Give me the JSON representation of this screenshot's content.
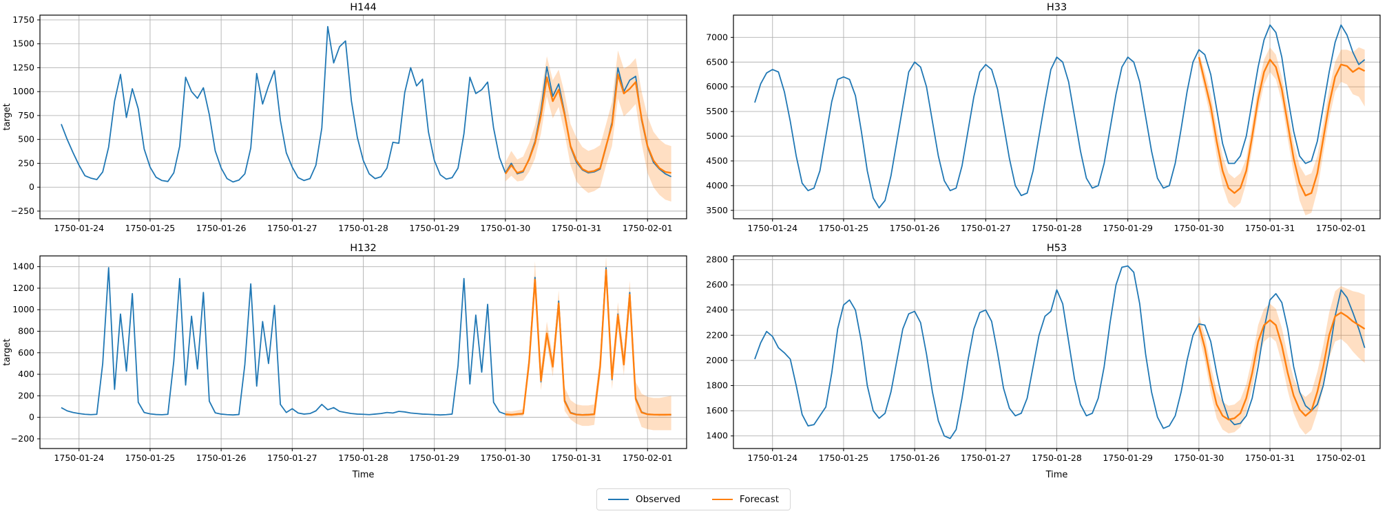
{
  "figure": {
    "background": "#ffffff"
  },
  "chart_data": {
    "type": "line",
    "description": "2x2 grid of hourly time-series forecast plots; blue observed line, orange forecast mean with shaded prediction interval over the final 2+ days",
    "x_tick_labels": [
      "1750-01-24",
      "1750-01-25",
      "1750-01-26",
      "1750-01-27",
      "1750-01-28",
      "1750-01-29",
      "1750-01-30",
      "1750-01-31",
      "1750-02-01"
    ],
    "x_tick_days": [
      0,
      1,
      2,
      3,
      4,
      5,
      6,
      7,
      8
    ],
    "xlim_days": [
      -0.55,
      8.55
    ],
    "sample_step_hours": 2,
    "observed_start_hour": -6,
    "forecast_start_hour": 144,
    "grid_on": true,
    "colors": {
      "observed": "#1f77b4",
      "forecast": "#ff7f0e",
      "band": "#ff7f0e",
      "band_opacity": 0.25,
      "grid": "#b0b0b0",
      "spine": "#000000",
      "text": "#000000"
    },
    "legend": {
      "observed_label": "Observed",
      "forecast_label": "Forecast",
      "position": "lower center"
    },
    "panels": [
      {
        "title": "H144",
        "ylabel": "target",
        "xlabel": null,
        "yticks": [
          -250,
          0,
          250,
          500,
          750,
          1000,
          1250,
          1500,
          1750
        ],
        "ylim": [
          -330,
          1800
        ],
        "observed": [
          660,
          500,
          360,
          230,
          120,
          95,
          80,
          160,
          420,
          900,
          1180,
          730,
          1030,
          820,
          400,
          210,
          105,
          70,
          60,
          150,
          430,
          1150,
          1000,
          930,
          1040,
          760,
          380,
          200,
          90,
          55,
          75,
          140,
          410,
          1190,
          870,
          1060,
          1220,
          700,
          360,
          210,
          100,
          70,
          90,
          230,
          620,
          1680,
          1300,
          1470,
          1530,
          900,
          520,
          280,
          140,
          90,
          110,
          200,
          470,
          460,
          990,
          1250,
          1060,
          1130,
          580,
          280,
          130,
          85,
          100,
          200,
          560,
          1150,
          980,
          1020,
          1100,
          620,
          310,
          150,
          250,
          140,
          160,
          300,
          480,
          800,
          1260,
          950,
          1080,
          780,
          420,
          260,
          180,
          150,
          160,
          190,
          420,
          680,
          1250,
          1000,
          1120,
          1160,
          700,
          420,
          260,
          190,
          140,
          110
        ],
        "forecast_mean": [
          140,
          230,
          150,
          170,
          290,
          460,
          750,
          1150,
          900,
          1020,
          760,
          430,
          280,
          190,
          160,
          170,
          200,
          430,
          650,
          1180,
          980,
          1030,
          1100,
          720,
          430,
          280,
          200,
          160,
          150
        ],
        "forecast_lower": [
          60,
          120,
          60,
          70,
          160,
          300,
          560,
          950,
          720,
          840,
          560,
          230,
          60,
          -10,
          -60,
          -40,
          0,
          230,
          430,
          930,
          740,
          800,
          870,
          460,
          150,
          0,
          -80,
          -130,
          -150
        ],
        "forecast_upper": [
          260,
          380,
          290,
          320,
          460,
          650,
          960,
          1370,
          1120,
          1230,
          980,
          660,
          520,
          420,
          380,
          400,
          440,
          660,
          890,
          1430,
          1240,
          1280,
          1350,
          1000,
          740,
          580,
          500,
          450,
          430
        ]
      },
      {
        "title": "H33",
        "ylabel": null,
        "xlabel": null,
        "yticks": [
          3500,
          4000,
          4500,
          5000,
          5500,
          6000,
          6500,
          7000
        ],
        "ylim": [
          3330,
          7450
        ],
        "observed": [
          5680,
          6060,
          6280,
          6350,
          6300,
          5900,
          5300,
          4600,
          4050,
          3900,
          3950,
          4300,
          5000,
          5700,
          6150,
          6200,
          6150,
          5820,
          5100,
          4300,
          3750,
          3550,
          3700,
          4200,
          4900,
          5600,
          6300,
          6500,
          6400,
          6000,
          5300,
          4600,
          4100,
          3900,
          3950,
          4400,
          5100,
          5800,
          6300,
          6450,
          6350,
          5950,
          5250,
          4550,
          4000,
          3800,
          3850,
          4300,
          5000,
          5700,
          6350,
          6600,
          6500,
          6100,
          5400,
          4700,
          4150,
          3950,
          4000,
          4450,
          5150,
          5850,
          6400,
          6600,
          6500,
          6100,
          5400,
          4700,
          4150,
          3950,
          4000,
          4450,
          5150,
          5900,
          6500,
          6750,
          6650,
          6250,
          5550,
          4850,
          4450,
          4450,
          4600,
          5000,
          5700,
          6400,
          6950,
          7250,
          7100,
          6600,
          5800,
          5100,
          4600,
          4450,
          4500,
          4900,
          5600,
          6300,
          6900,
          7250,
          7050,
          6700,
          6450,
          6550
        ],
        "forecast_mean": [
          6600,
          6100,
          5600,
          4900,
          4300,
          3950,
          3850,
          3950,
          4300,
          5000,
          5750,
          6300,
          6550,
          6400,
          5950,
          5250,
          4550,
          4050,
          3800,
          3850,
          4250,
          4950,
          5650,
          6200,
          6450,
          6420,
          6300,
          6380,
          6320
        ],
        "forecast_lower": [
          6450,
          5900,
          5350,
          4600,
          4000,
          3650,
          3550,
          3650,
          4050,
          4750,
          5500,
          6050,
          6300,
          6150,
          5700,
          4950,
          4250,
          3700,
          3400,
          3450,
          3900,
          4650,
          5350,
          5900,
          6100,
          6050,
          5850,
          5800,
          5600
        ],
        "forecast_upper": [
          6700,
          6300,
          5850,
          5200,
          4600,
          4250,
          4150,
          4250,
          4550,
          5250,
          6000,
          6550,
          6800,
          6650,
          6200,
          5550,
          4850,
          4400,
          4200,
          4250,
          4600,
          5250,
          5950,
          6500,
          6750,
          6750,
          6700,
          6800,
          6750
        ]
      },
      {
        "title": "H132",
        "ylabel": "target",
        "xlabel": "Time",
        "yticks": [
          -200,
          0,
          200,
          400,
          600,
          800,
          1000,
          1200,
          1400
        ],
        "ylim": [
          -290,
          1500
        ],
        "observed": [
          90,
          60,
          45,
          35,
          28,
          25,
          28,
          500,
          1390,
          260,
          960,
          430,
          1150,
          140,
          45,
          32,
          26,
          24,
          28,
          520,
          1290,
          300,
          940,
          450,
          1160,
          150,
          42,
          30,
          25,
          22,
          26,
          490,
          1240,
          290,
          890,
          500,
          1040,
          120,
          45,
          80,
          40,
          30,
          35,
          60,
          120,
          70,
          90,
          55,
          45,
          35,
          30,
          28,
          25,
          30,
          35,
          45,
          40,
          55,
          50,
          40,
          35,
          30,
          28,
          25,
          22,
          25,
          30,
          480,
          1290,
          310,
          950,
          420,
          1050,
          140,
          50,
          30,
          25,
          28,
          32,
          520,
          1300,
          330,
          770,
          480,
          1080,
          160,
          45,
          28,
          24,
          26,
          30,
          480,
          1390,
          350,
          960,
          500,
          1160,
          180,
          50,
          30,
          25,
          22,
          25,
          22
        ],
        "forecast_mean": [
          28,
          24,
          30,
          34,
          510,
          1280,
          340,
          780,
          470,
          1060,
          150,
          40,
          25,
          22,
          24,
          28,
          470,
          1370,
          360,
          950,
          490,
          1140,
          170,
          45,
          28,
          25,
          24,
          24,
          25
        ],
        "forecast_lower": [
          10,
          5,
          8,
          10,
          430,
          1150,
          250,
          680,
          380,
          950,
          60,
          -20,
          -60,
          -80,
          -80,
          -70,
          380,
          1250,
          260,
          840,
          390,
          1020,
          60,
          -90,
          -110,
          -120,
          -120,
          -120,
          -120
        ],
        "forecast_upper": [
          60,
          55,
          65,
          75,
          600,
          1450,
          450,
          890,
          570,
          1180,
          280,
          160,
          120,
          110,
          110,
          120,
          570,
          1500,
          480,
          1070,
          600,
          1270,
          330,
          220,
          190,
          180,
          180,
          190,
          200
        ]
      },
      {
        "title": "H53",
        "ylabel": null,
        "xlabel": "Time",
        "yticks": [
          1400,
          1600,
          1800,
          2000,
          2200,
          2400,
          2600,
          2800
        ],
        "ylim": [
          1300,
          2830
        ],
        "observed": [
          2010,
          2140,
          2230,
          2190,
          2100,
          2060,
          2010,
          1800,
          1570,
          1480,
          1490,
          1560,
          1630,
          1900,
          2250,
          2440,
          2480,
          2400,
          2150,
          1800,
          1600,
          1540,
          1580,
          1750,
          2000,
          2250,
          2370,
          2390,
          2300,
          2050,
          1750,
          1520,
          1400,
          1380,
          1450,
          1700,
          2000,
          2250,
          2380,
          2400,
          2310,
          2060,
          1780,
          1620,
          1560,
          1580,
          1700,
          1950,
          2200,
          2350,
          2390,
          2560,
          2450,
          2150,
          1850,
          1650,
          1560,
          1580,
          1700,
          1950,
          2300,
          2600,
          2740,
          2750,
          2700,
          2450,
          2050,
          1750,
          1550,
          1460,
          1480,
          1560,
          1750,
          2000,
          2200,
          2290,
          2280,
          2150,
          1900,
          1680,
          1540,
          1490,
          1500,
          1560,
          1700,
          1950,
          2250,
          2480,
          2530,
          2460,
          2250,
          1950,
          1750,
          1640,
          1600,
          1650,
          1800,
          2050,
          2350,
          2560,
          2500,
          2380,
          2250,
          2100
        ],
        "forecast_mean": [
          2280,
          2100,
          1850,
          1650,
          1560,
          1530,
          1540,
          1580,
          1700,
          1900,
          2150,
          2280,
          2320,
          2280,
          2120,
          1900,
          1720,
          1610,
          1560,
          1600,
          1750,
          1950,
          2200,
          2350,
          2380,
          2350,
          2310,
          2280,
          2250
        ],
        "forecast_lower": [
          2200,
          2000,
          1740,
          1540,
          1450,
          1420,
          1430,
          1470,
          1590,
          1780,
          2020,
          2150,
          2190,
          2150,
          1980,
          1760,
          1580,
          1470,
          1410,
          1450,
          1590,
          1780,
          2020,
          2150,
          2170,
          2130,
          2070,
          2020,
          1980
        ],
        "forecast_upper": [
          2360,
          2200,
          1960,
          1760,
          1670,
          1640,
          1650,
          1690,
          1810,
          2020,
          2280,
          2410,
          2450,
          2410,
          2260,
          2040,
          1860,
          1750,
          1710,
          1750,
          1910,
          2120,
          2380,
          2550,
          2590,
          2570,
          2550,
          2540,
          2520
        ]
      }
    ]
  }
}
